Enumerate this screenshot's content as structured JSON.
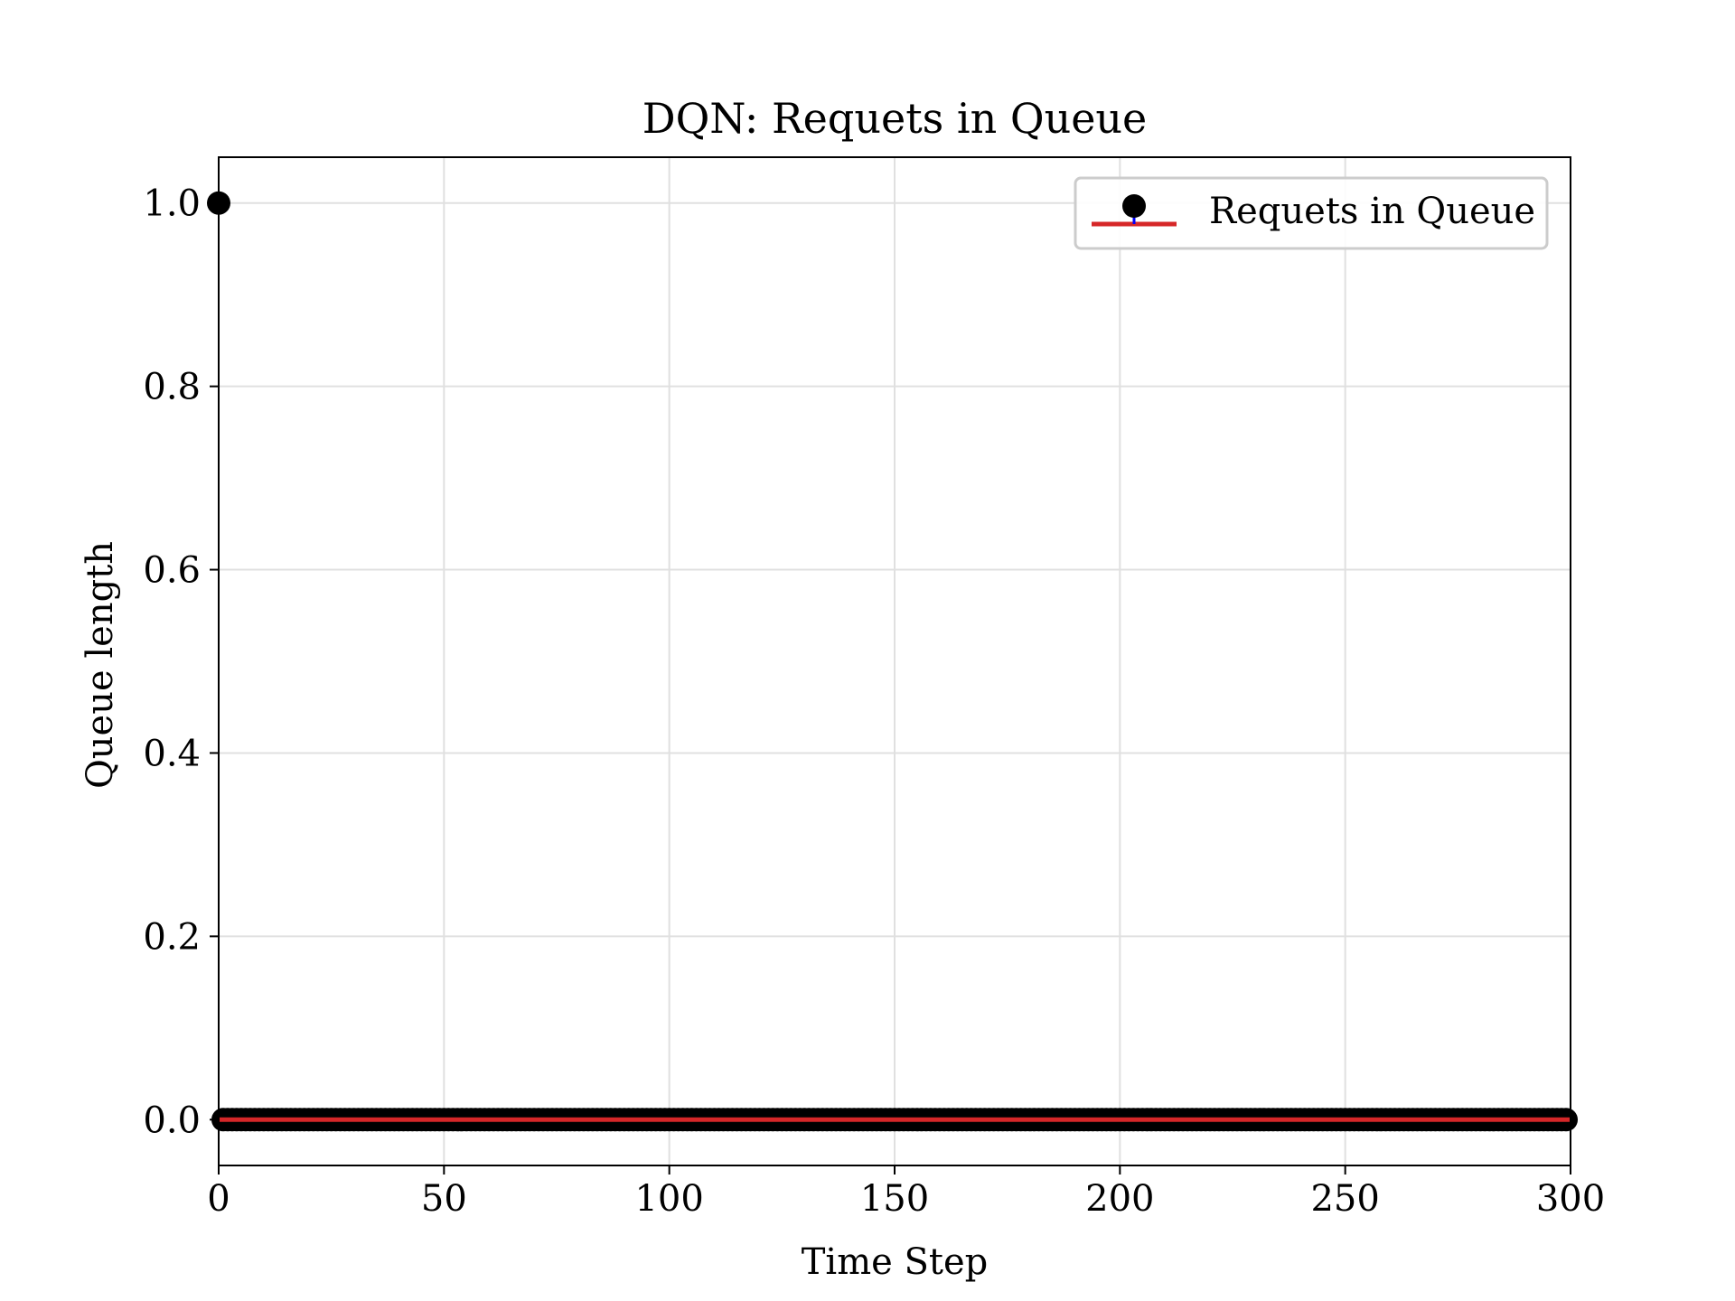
{
  "chart_data": {
    "type": "stem",
    "title": "DQN: Requets in Queue",
    "xlabel": "Time Step",
    "ylabel": "Queue length",
    "xlim": [
      0,
      300
    ],
    "ylim": [
      -0.05,
      1.05
    ],
    "xticks": [
      0,
      50,
      100,
      150,
      200,
      250,
      300
    ],
    "xtick_labels": [
      "0",
      "50",
      "100",
      "150",
      "200",
      "250",
      "300"
    ],
    "yticks": [
      0.0,
      0.2,
      0.4,
      0.6,
      0.8,
      1.0
    ],
    "ytick_labels": [
      "0.0",
      "0.2",
      "0.4",
      "0.6",
      "0.8",
      "1.0"
    ],
    "grid": true,
    "legend_position": "top-right",
    "series": [
      {
        "name": "Requets in Queue",
        "x_range": [
          0,
          299
        ],
        "x_step": 1,
        "values_note_free": true,
        "nonzero_points": [
          {
            "x": 0,
            "y": 1.0
          }
        ],
        "default_value": 0.0
      }
    ],
    "colors": {
      "marker": "#000000",
      "stem": "#0000ff",
      "baseline": "#d62728",
      "grid": "#e0e0e0"
    }
  }
}
